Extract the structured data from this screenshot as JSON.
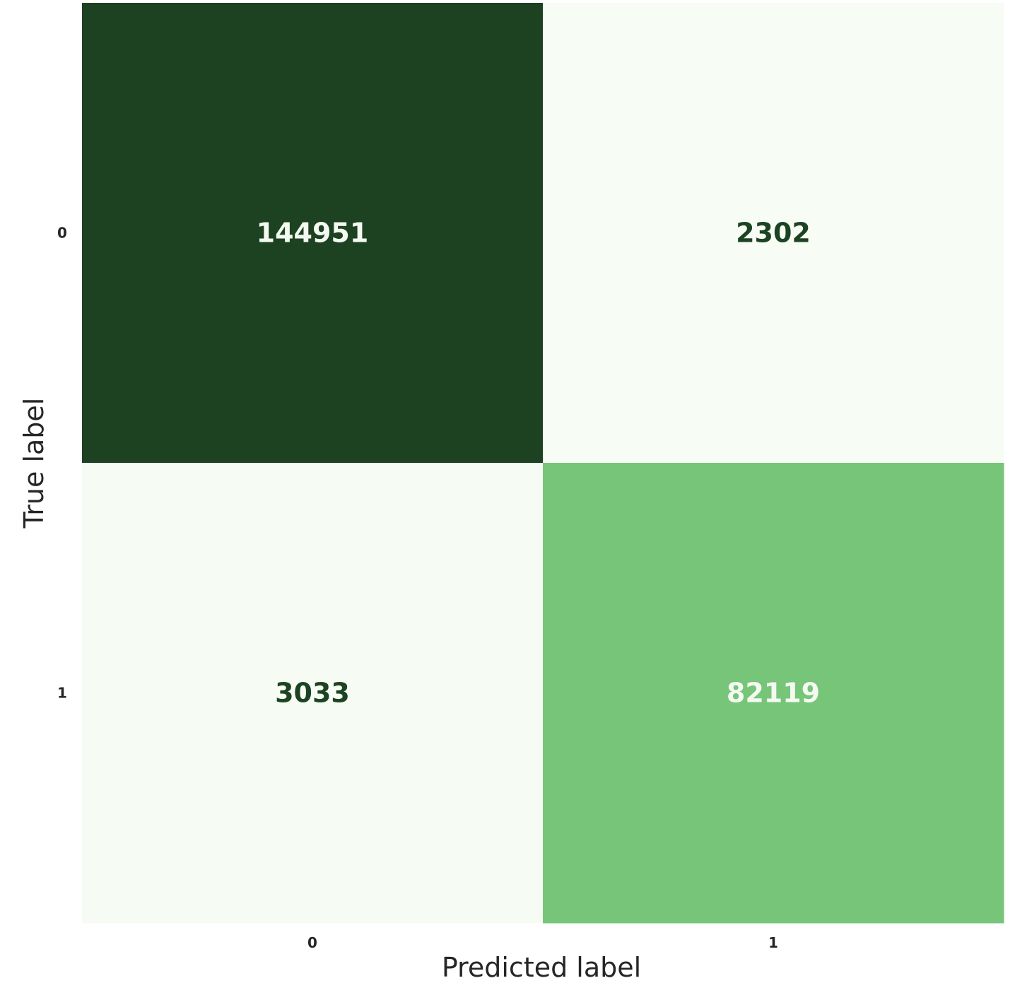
{
  "chart_data": {
    "type": "heatmap",
    "title": "",
    "xlabel": "Predicted label",
    "ylabel": "True label",
    "x_categories": [
      "0",
      "1"
    ],
    "y_categories": [
      "0",
      "1"
    ],
    "values": [
      [
        144951,
        2302
      ],
      [
        3033,
        82119
      ]
    ],
    "colormap": "Greens",
    "colorbar": false,
    "grid": false
  }
}
